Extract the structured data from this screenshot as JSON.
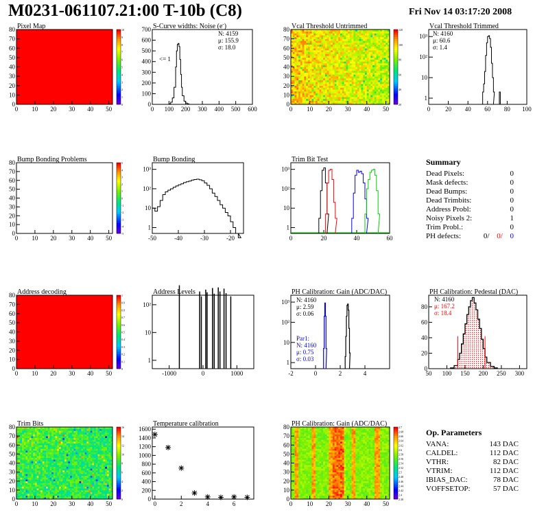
{
  "header": {
    "title": "M0231-061107.21:00 T-10b (C8)",
    "date": "Fri Nov 14 03:17:20 2008"
  },
  "colors": {
    "series_black": "#000000",
    "series_red": "#ff0000",
    "series_blue": "#0000ff",
    "series_green": "#00cc00",
    "fill_red": "#ff0000"
  },
  "chart_data": [
    {
      "id": "pixel-map",
      "type": "heatmap",
      "title": "Pixel Map",
      "xlim": [
        0,
        52
      ],
      "ylim": [
        0,
        80
      ],
      "xticks": [
        0,
        10,
        20,
        30,
        40,
        50
      ],
      "yticks": [
        0,
        10,
        20,
        30,
        40,
        50,
        60,
        70,
        80
      ],
      "uniform_value": 10,
      "palette_ticks": [
        0,
        1,
        2,
        3,
        4,
        5,
        6,
        7,
        8,
        9,
        10
      ]
    },
    {
      "id": "scurve-noise",
      "type": "histogram",
      "title": "S-Curve widths: Noise (e",
      "title_sup": "-",
      "title_end": ")",
      "xlim": [
        0,
        600
      ],
      "ylim": [
        0,
        700
      ],
      "xticks": [
        0,
        100,
        200,
        300,
        400,
        500,
        600
      ],
      "yticks": [
        0,
        100,
        200,
        300,
        400,
        500,
        600,
        700
      ],
      "stats": [
        "N: 4159",
        "μ: 155.9",
        "σ: 18.0"
      ],
      "annotation": "<= 1",
      "x": [
        100,
        110,
        120,
        130,
        140,
        145,
        150,
        155,
        160,
        165,
        170,
        175,
        180,
        190,
        200,
        210,
        220
      ],
      "y": [
        5,
        20,
        60,
        160,
        350,
        500,
        560,
        570,
        540,
        420,
        280,
        160,
        80,
        30,
        12,
        5,
        0
      ]
    },
    {
      "id": "vcal-untrimmed",
      "type": "heatmap",
      "title": "Vcal Threshold Untrimmed",
      "xlim": [
        0,
        52
      ],
      "ylim": [
        0,
        80
      ],
      "xticks": [
        0,
        10,
        20,
        30,
        40,
        50
      ],
      "yticks": [
        0,
        10,
        20,
        30,
        40,
        50,
        60,
        70,
        80
      ],
      "palette_ticks": [
        20,
        40,
        60,
        80,
        100,
        120
      ]
    },
    {
      "id": "vcal-trimmed",
      "type": "histogram",
      "title": "Vcal Threshold Trimmed",
      "log_y": true,
      "xlim": [
        0,
        100
      ],
      "xticks": [
        0,
        20,
        40,
        60,
        80,
        100
      ],
      "yticks": [
        "1",
        "10",
        "10²",
        "10³"
      ],
      "stats": [
        "N: 4160",
        "μ: 60.6",
        "σ:  1.4"
      ],
      "x": [
        55,
        56,
        57,
        58,
        59,
        60,
        61,
        62,
        63,
        64,
        65,
        66,
        72
      ],
      "y": [
        2,
        5,
        20,
        120,
        500,
        1000,
        1100,
        800,
        300,
        50,
        10,
        2,
        2
      ]
    },
    {
      "id": "bump-problems",
      "type": "heatmap",
      "title": "Bump Bonding Problems",
      "xlim": [
        0,
        52
      ],
      "ylim": [
        0,
        80
      ],
      "xticks": [
        0,
        10,
        20,
        30,
        40,
        50
      ],
      "yticks": [
        0,
        10,
        20,
        30,
        40,
        50,
        60,
        70,
        80
      ],
      "empty": true,
      "palette_ticks": [
        -5,
        -4,
        -3,
        -2,
        -1,
        0,
        1,
        2,
        3,
        4,
        5
      ]
    },
    {
      "id": "bump-bonding",
      "type": "histogram",
      "title": "Bump Bonding",
      "log_y": true,
      "xlim": [
        -50,
        -15
      ],
      "xticks": [
        -50,
        -40,
        -30,
        -20
      ],
      "yticks": [
        "1",
        "10",
        "10²",
        "10³"
      ],
      "x": [
        -50,
        -49,
        -48,
        -47,
        -46,
        -45,
        -44,
        -43,
        -42,
        -41,
        -40,
        -39,
        -38,
        -37,
        -36,
        -35,
        -34,
        -33,
        -32,
        -31,
        -30,
        -29,
        -28,
        -27,
        -26,
        -25,
        -24,
        -23,
        -22,
        -21,
        -20,
        -19,
        -18,
        -17
      ],
      "y": [
        10,
        7,
        12,
        25,
        50,
        70,
        85,
        100,
        120,
        140,
        160,
        180,
        210,
        230,
        250,
        280,
        300,
        310,
        290,
        260,
        200,
        150,
        100,
        60,
        40,
        25,
        15,
        10,
        6,
        4,
        2,
        1,
        0.5,
        0.3
      ]
    },
    {
      "id": "trim-bit-test",
      "type": "histogram",
      "title": "Trim Bit Test",
      "log_y": true,
      "xlim": [
        0,
        60
      ],
      "xticks": [
        0,
        20,
        40,
        60
      ],
      "yticks": [
        "1",
        "10",
        "10²",
        "10³"
      ],
      "series": [
        {
          "color": "black",
          "x": [
            17,
            18,
            19,
            20,
            21,
            22
          ],
          "y": [
            3,
            80,
            900,
            1200,
            200,
            5
          ]
        },
        {
          "color": "red",
          "x": [
            21,
            22,
            23,
            24,
            25,
            26,
            27
          ],
          "y": [
            5,
            200,
            900,
            1000,
            300,
            20,
            3
          ]
        },
        {
          "color": "blue",
          "x": [
            37,
            38,
            39,
            40,
            41,
            42,
            43,
            44,
            45,
            46
          ],
          "y": [
            3,
            60,
            500,
            900,
            700,
            800,
            600,
            200,
            30,
            3
          ]
        },
        {
          "color": "green",
          "x": [
            45,
            46,
            47,
            48,
            49,
            50,
            51,
            52,
            53
          ],
          "y": [
            5,
            100,
            300,
            700,
            900,
            1000,
            500,
            80,
            5
          ]
        }
      ]
    },
    {
      "id": "address-decoding",
      "type": "heatmap",
      "title": "Address decoding",
      "xlim": [
        0,
        52
      ],
      "ylim": [
        0,
        80
      ],
      "xticks": [
        0,
        10,
        20,
        30,
        40,
        50
      ],
      "yticks": [
        0,
        10,
        20,
        30,
        40,
        50,
        60,
        70,
        80
      ],
      "uniform_value": 1,
      "palette_ticks": [
        0,
        0.1,
        0.2,
        0.3,
        0.4,
        0.5,
        0.6,
        0.7,
        0.8,
        0.9,
        1
      ]
    },
    {
      "id": "address-levels",
      "type": "histogram",
      "title": "Address Levels",
      "log_y": true,
      "xlim": [
        -1500,
        1500
      ],
      "xticks": [
        -1000,
        0,
        1000
      ],
      "yticks": [
        "1",
        "10",
        "10²"
      ],
      "spikes": [
        -700,
        -100,
        -50,
        80,
        120,
        280,
        330,
        450,
        500,
        620,
        680,
        820
      ],
      "spike_heights": [
        500,
        300,
        200,
        350,
        280,
        400,
        250,
        420,
        300,
        380,
        260,
        200
      ]
    },
    {
      "id": "ph-gain",
      "type": "histogram",
      "title": "PH Calibration: Gain (ADC/DAC)",
      "log_y": true,
      "xlim": [
        -2,
        6
      ],
      "xticks": [
        -2,
        0,
        2,
        4
      ],
      "yticks": [
        "1",
        "10",
        "10²",
        "10³"
      ],
      "stats": [
        "N: 4160",
        "μ: 2.59",
        "σ: 0.06"
      ],
      "par1": [
        "Par1:",
        "N: 4160",
        "μ: 0.75",
        "σ: 0.03"
      ],
      "series": [
        {
          "color": "black",
          "x": [
            2.4,
            2.45,
            2.5,
            2.55,
            2.6,
            2.65,
            2.7,
            2.75
          ],
          "y": [
            2,
            20,
            200,
            700,
            800,
            400,
            50,
            3
          ]
        },
        {
          "color": "blue",
          "x": [
            0.65,
            0.7,
            0.75,
            0.8,
            0.85
          ],
          "y": [
            5,
            200,
            900,
            200,
            5
          ]
        }
      ]
    },
    {
      "id": "ph-pedestal",
      "type": "histogram",
      "title": "PH Calibration: Pedestal (DAC)",
      "xlim": [
        50,
        320
      ],
      "ylim": [
        0,
        95
      ],
      "xticks": [
        50,
        100,
        150,
        200,
        250,
        300
      ],
      "yticks": [
        0,
        20,
        40,
        60,
        80
      ],
      "stats": [
        "N: 4160",
        "μ: 167.2",
        "σ: 18.4"
      ],
      "cut_lines": [
        130,
        205
      ],
      "x": [
        110,
        120,
        130,
        135,
        140,
        145,
        150,
        155,
        160,
        165,
        170,
        175,
        180,
        185,
        190,
        195,
        200,
        205,
        210,
        220,
        230
      ],
      "y": [
        1,
        4,
        12,
        20,
        32,
        45,
        58,
        70,
        80,
        88,
        92,
        85,
        76,
        64,
        52,
        38,
        26,
        15,
        8,
        3,
        1
      ]
    },
    {
      "id": "trim-bits",
      "type": "heatmap",
      "title": "Trim Bits",
      "xlim": [
        0,
        52
      ],
      "ylim": [
        0,
        80
      ],
      "xticks": [
        0,
        10,
        20,
        30,
        40,
        50
      ],
      "yticks": [
        0,
        10,
        20,
        30,
        40,
        50,
        60,
        70,
        80
      ],
      "palette_ticks": [
        0,
        2,
        4,
        6,
        8,
        10,
        12,
        14,
        16
      ]
    },
    {
      "id": "temperature-calibration",
      "type": "scatter",
      "title": "Temperature calibration",
      "xlim": [
        -0.2,
        7.5
      ],
      "ylim": [
        0,
        1650
      ],
      "xticks": [
        0,
        2,
        4,
        6
      ],
      "yticks": [
        0,
        200,
        400,
        600,
        800,
        1000,
        1200,
        1400,
        1600
      ],
      "x": [
        0,
        1,
        2,
        3,
        4,
        5,
        6,
        7
      ],
      "y": [
        1480,
        1180,
        710,
        140,
        50,
        40,
        50,
        40
      ]
    },
    {
      "id": "ph-gain-map",
      "type": "heatmap",
      "title": "PH Calibration: Gain (ADC/DAC)",
      "xlim": [
        0,
        52
      ],
      "ylim": [
        0,
        80
      ],
      "xticks": [
        0,
        10,
        20,
        30,
        40,
        50
      ],
      "yticks": [
        0,
        10,
        20,
        30,
        40,
        50,
        60,
        70,
        80
      ],
      "palette_ticks": [
        2.38,
        2.4,
        2.42,
        2.44,
        2.46,
        2.48,
        2.5,
        2.52,
        2.54,
        2.56,
        2.58,
        2.6,
        2.62,
        2.64,
        2.66,
        2.68,
        2.7
      ]
    }
  ],
  "summary": {
    "title": "Summary",
    "rows": [
      {
        "label": "Dead Pixels:",
        "value": "0"
      },
      {
        "label": "Mask defects:",
        "value": "0"
      },
      {
        "label": "Dead Bumps:",
        "value": "0"
      },
      {
        "label": "Dead Trimbits:",
        "value": "0"
      },
      {
        "label": "Address Probl:",
        "value": "0"
      },
      {
        "label": "Noisy Pixels 2:",
        "value": "1"
      },
      {
        "label": "Trim Probl.:",
        "value": "0"
      }
    ],
    "ph_defects": {
      "label": "PH defects:",
      "black": "0/",
      "red": "0/",
      "blue": "0"
    }
  },
  "op_params": {
    "title": "Op. Parameters",
    "rows": [
      {
        "label": "VANA:",
        "value": "143 DAC"
      },
      {
        "label": "CALDEL:",
        "value": "112 DAC"
      },
      {
        "label": "VTHR:",
        "value": "82 DAC"
      },
      {
        "label": "VTRIM:",
        "value": "112 DAC"
      },
      {
        "label": "IBIAS_DAC:",
        "value": "78 DAC"
      },
      {
        "label": "VOFFSETOP:",
        "value": "57 DAC"
      }
    ]
  }
}
